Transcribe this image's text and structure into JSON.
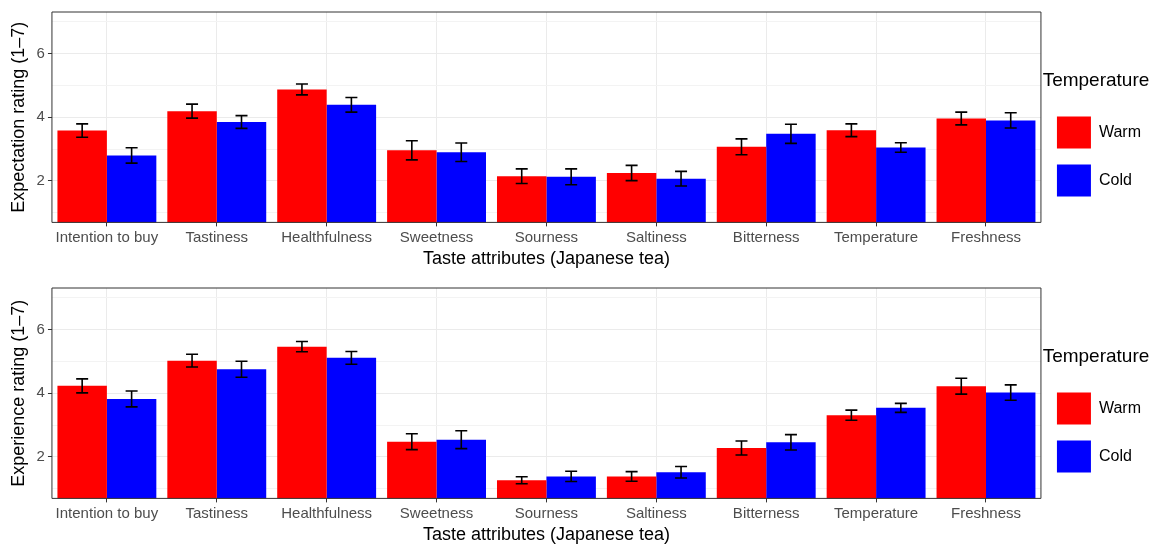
{
  "chart_data": [
    {
      "type": "bar",
      "xlabel": "Taste attributes (Japanese tea)",
      "ylabel": "Expectation rating (1–7)",
      "legend_title": "Temperature",
      "legend": "right",
      "grid": true,
      "categories": [
        "Intention to buy",
        "Tastiness",
        "Healthfulness",
        "Sweetness",
        "Sourness",
        "Saltiness",
        "Bitterness",
        "Temperature",
        "Freshness"
      ],
      "ylim": [
        0.7,
        7.3
      ],
      "yticks": [
        {
          "value": 1,
          "label": null
        },
        2,
        {
          "value": 3,
          "label": null
        },
        4,
        {
          "value": 5,
          "label": null
        },
        6,
        {
          "value": 7,
          "label": null
        }
      ],
      "series": [
        {
          "name": "Warm",
          "color": "#ff0000",
          "values": [
            3.58,
            4.19,
            4.87,
            2.96,
            2.15,
            2.25,
            3.07,
            3.59,
            3.96
          ],
          "errors": [
            0.21,
            0.22,
            0.17,
            0.3,
            0.23,
            0.24,
            0.25,
            0.2,
            0.2
          ]
        },
        {
          "name": "Cold",
          "color": "#0000ff",
          "values": [
            2.8,
            3.85,
            4.39,
            2.9,
            2.13,
            2.07,
            3.48,
            3.05,
            3.9
          ],
          "errors": [
            0.24,
            0.2,
            0.23,
            0.29,
            0.25,
            0.23,
            0.3,
            0.15,
            0.24
          ]
        }
      ]
    },
    {
      "type": "bar",
      "xlabel": "Taste attributes (Japanese tea)",
      "ylabel": "Experience rating (1–7)",
      "legend_title": "Temperature",
      "legend": "right",
      "grid": true,
      "categories": [
        "Intention to buy",
        "Tastiness",
        "Healthfulness",
        "Sweetness",
        "Sourness",
        "Saltiness",
        "Bitterness",
        "Temperature",
        "Freshness"
      ],
      "ylim": [
        0.7,
        7.3
      ],
      "yticks": [
        {
          "value": 1,
          "label": null
        },
        2,
        {
          "value": 3,
          "label": null
        },
        4,
        {
          "value": 5,
          "label": null
        },
        6,
        {
          "value": 7,
          "label": null
        }
      ],
      "series": [
        {
          "name": "Warm",
          "color": "#ff0000",
          "values": [
            4.23,
            5.02,
            5.46,
            2.48,
            1.27,
            1.39,
            2.28,
            3.31,
            4.22
          ],
          "errors": [
            0.22,
            0.2,
            0.16,
            0.25,
            0.11,
            0.15,
            0.22,
            0.16,
            0.25
          ]
        },
        {
          "name": "Cold",
          "color": "#0000ff",
          "values": [
            3.82,
            4.75,
            5.11,
            2.54,
            1.39,
            1.52,
            2.46,
            3.54,
            4.02
          ],
          "errors": [
            0.25,
            0.25,
            0.2,
            0.28,
            0.16,
            0.18,
            0.24,
            0.14,
            0.24
          ]
        }
      ]
    }
  ]
}
